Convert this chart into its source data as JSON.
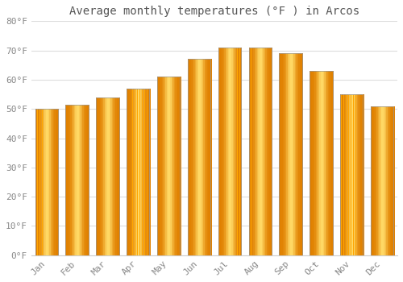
{
  "title": "Average monthly temperatures (°F ) in Arcos",
  "months": [
    "Jan",
    "Feb",
    "Mar",
    "Apr",
    "May",
    "Jun",
    "Jul",
    "Aug",
    "Sep",
    "Oct",
    "Nov",
    "Dec"
  ],
  "values": [
    50,
    51.5,
    54,
    57,
    61,
    67,
    71,
    71,
    69,
    63,
    55,
    51
  ],
  "bar_color_main": "#FFA500",
  "bar_color_light": "#FFD966",
  "bar_color_dark": "#E08000",
  "bar_edge_color": "#999999",
  "ylim": [
    0,
    80
  ],
  "yticks": [
    0,
    10,
    20,
    30,
    40,
    50,
    60,
    70,
    80
  ],
  "ytick_labels": [
    "0°F",
    "10°F",
    "20°F",
    "30°F",
    "40°F",
    "50°F",
    "60°F",
    "70°F",
    "80°F"
  ],
  "bg_color": "#ffffff",
  "plot_bg_color": "#ffffff",
  "grid_color": "#dddddd",
  "title_fontsize": 10,
  "tick_fontsize": 8,
  "tick_color": "#888888"
}
